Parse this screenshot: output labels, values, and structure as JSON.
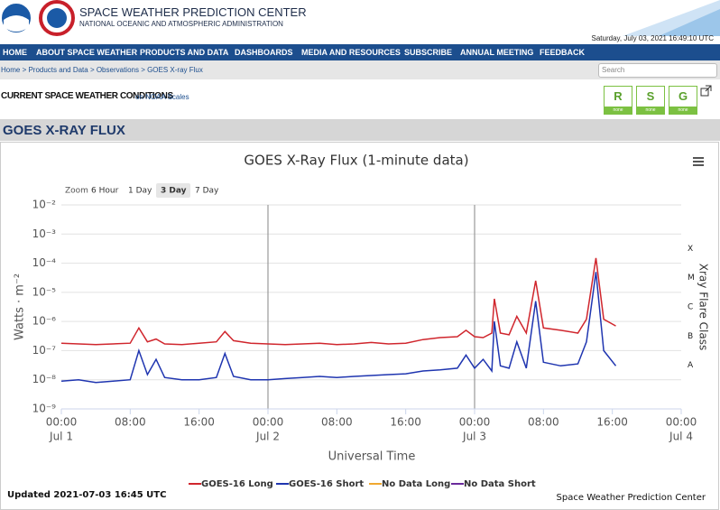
{
  "header": {
    "title": "SPACE WEATHER PREDICTION CENTER",
    "subtitle": "NATIONAL OCEANIC AND ATMOSPHERIC ADMINISTRATION",
    "date": "Saturday, July 03, 2021 16:49:10 UTC"
  },
  "nav": [
    "HOME",
    "ABOUT SPACE WEATHER",
    "PRODUCTS AND DATA",
    "DASHBOARDS",
    "MEDIA AND RESOURCES",
    "SUBSCRIBE",
    "ANNUAL MEETING",
    "FEEDBACK"
  ],
  "breadcrumb": "Home > Products and Data > Observations > GOES X-ray Flux",
  "search_placeholder": "Search",
  "conditions": {
    "title": "CURRENT SPACE WEATHER CONDITIONS",
    "link": "on NOAA Scales",
    "scales": [
      {
        "letter": "R",
        "status": "none"
      },
      {
        "letter": "S",
        "status": "none"
      },
      {
        "letter": "G",
        "status": "none"
      }
    ]
  },
  "page_title": "GOES X-RAY FLUX",
  "chart_data": {
    "type": "line",
    "title": "GOES X-Ray Flux (1-minute data)",
    "zoom": {
      "label": "Zoom",
      "options": [
        "6 Hour",
        "1 Day",
        "3 Day",
        "7 Day"
      ],
      "selected": 2
    },
    "xlabel": "Universal Time",
    "ylabel": "Watts · m⁻²",
    "y2label": "Xray Flare Class",
    "log_y": true,
    "grid": true,
    "ylim": [
      1e-09,
      0.01
    ],
    "yticks": [
      {
        "value": 1e-09,
        "label": "10⁻⁹"
      },
      {
        "value": 1e-08,
        "label": "10⁻⁸"
      },
      {
        "value": 1e-07,
        "label": "10⁻⁷"
      },
      {
        "value": 1e-06,
        "label": "10⁻⁶"
      },
      {
        "value": 1e-05,
        "label": "10⁻⁵"
      },
      {
        "value": 0.0001,
        "label": "10⁻⁴"
      },
      {
        "value": 0.001,
        "label": "10⁻³"
      },
      {
        "value": 0.01,
        "label": "10⁻²"
      }
    ],
    "flare_classes": [
      {
        "label": "A",
        "value": 1e-08
      },
      {
        "label": "B",
        "value": 1e-07
      },
      {
        "label": "C",
        "value": 1e-06
      },
      {
        "label": "M",
        "value": 1e-05
      },
      {
        "label": "X",
        "value": 0.0001
      }
    ],
    "xlim": [
      0,
      72
    ],
    "xticks": [
      {
        "value": 0,
        "label": "00:00",
        "date": "Jul 1"
      },
      {
        "value": 8,
        "label": "08:00"
      },
      {
        "value": 16,
        "label": "16:00"
      },
      {
        "value": 24,
        "label": "00:00",
        "date": "Jul 2"
      },
      {
        "value": 32,
        "label": "08:00"
      },
      {
        "value": 40,
        "label": "16:00"
      },
      {
        "value": 48,
        "label": "00:00",
        "date": "Jul 3"
      },
      {
        "value": 56,
        "label": "08:00"
      },
      {
        "value": 64,
        "label": "16:00"
      },
      {
        "value": 72,
        "label": "00:00",
        "date": "Jul 4"
      }
    ],
    "plot_lines_x": [
      24,
      48
    ],
    "x": [
      0,
      2,
      4,
      6,
      8,
      9,
      10,
      11,
      12,
      14,
      16,
      18,
      19,
      20,
      22,
      24,
      26,
      28,
      30,
      32,
      34,
      36,
      38,
      40,
      42,
      44,
      46,
      47,
      48,
      49,
      50,
      50.3,
      51,
      52,
      52.9,
      54,
      55.1,
      56,
      58,
      60,
      61,
      62.1,
      63,
      64.4
    ],
    "series": [
      {
        "name": "GOES-16 Long",
        "color": "#d0262d",
        "values": [
          1.8e-07,
          1.7e-07,
          1.6e-07,
          1.7e-07,
          1.8e-07,
          6e-07,
          2e-07,
          2.5e-07,
          1.7e-07,
          1.6e-07,
          1.8e-07,
          2e-07,
          4.5e-07,
          2.2e-07,
          1.8e-07,
          1.7e-07,
          1.6e-07,
          1.7e-07,
          1.8e-07,
          1.6e-07,
          1.7e-07,
          1.9e-07,
          1.7e-07,
          1.8e-07,
          2.4e-07,
          2.8e-07,
          3e-07,
          5e-07,
          3e-07,
          2.8e-07,
          4e-07,
          6e-06,
          4e-07,
          3.5e-07,
          1.5e-06,
          4e-07,
          2.5e-05,
          6e-07,
          5e-07,
          4e-07,
          1.2e-06,
          0.00015,
          1.2e-06,
          7e-07
        ]
      },
      {
        "name": "GOES-16 Short",
        "color": "#1f35b0",
        "values": [
          9e-09,
          1e-08,
          8e-09,
          9e-09,
          1e-08,
          1e-07,
          1.5e-08,
          5e-08,
          1.2e-08,
          1e-08,
          1e-08,
          1.2e-08,
          8e-08,
          1.3e-08,
          1e-08,
          1e-08,
          1.1e-08,
          1.2e-08,
          1.3e-08,
          1.2e-08,
          1.3e-08,
          1.4e-08,
          1.5e-08,
          1.6e-08,
          2e-08,
          2.2e-08,
          2.5e-08,
          7e-08,
          2.5e-08,
          5e-08,
          2e-08,
          1e-06,
          3e-08,
          2.5e-08,
          2e-07,
          2.5e-08,
          5e-06,
          4e-08,
          3e-08,
          3.5e-08,
          2e-07,
          5e-05,
          1e-07,
          3e-08
        ]
      },
      {
        "name": "No Data Long",
        "color": "#f0a830",
        "values": [
          null,
          null,
          null,
          null,
          null,
          null,
          null,
          null,
          null,
          null,
          null,
          null,
          null,
          null,
          null,
          null,
          null,
          null,
          null,
          null,
          null,
          null,
          null,
          null,
          null,
          null,
          null,
          null,
          null,
          null,
          null,
          null,
          null,
          null,
          null,
          null,
          null,
          null,
          null,
          null,
          null,
          null,
          null,
          null
        ]
      },
      {
        "name": "No Data Short",
        "color": "#6a2a9c",
        "values": [
          null,
          null,
          null,
          null,
          null,
          null,
          null,
          null,
          null,
          null,
          null,
          null,
          null,
          null,
          null,
          null,
          null,
          null,
          null,
          null,
          null,
          null,
          null,
          null,
          null,
          null,
          null,
          null,
          null,
          null,
          null,
          null,
          null,
          null,
          null,
          null,
          null,
          null,
          null,
          null,
          null,
          null,
          null,
          null
        ]
      }
    ]
  },
  "footer": {
    "updated": "Updated 2021-07-03 16:45 UTC",
    "credit": "Space Weather Prediction Center"
  }
}
